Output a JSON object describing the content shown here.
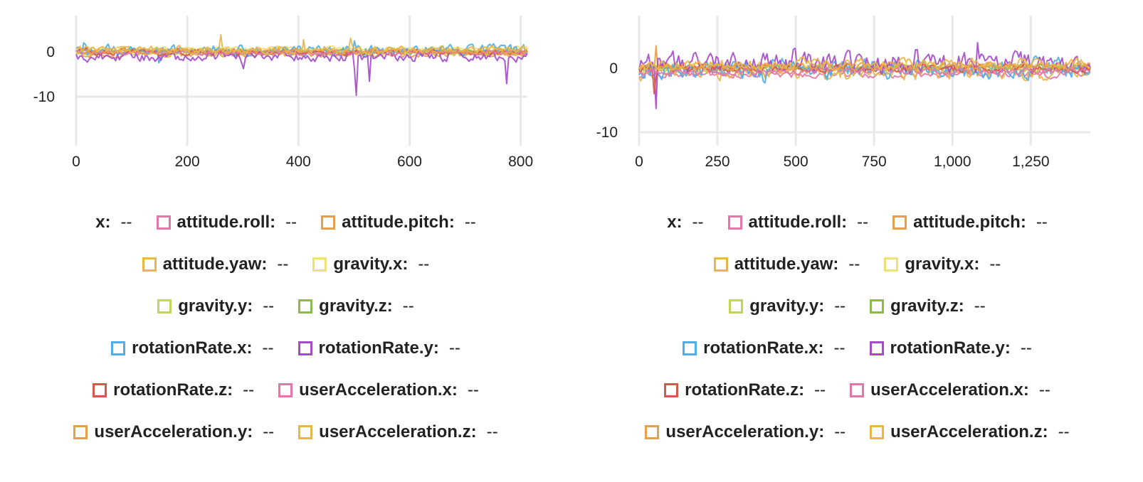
{
  "charts": [
    {
      "chart_data": {
        "type": "line",
        "x_range": [
          0,
          812
        ],
        "ylim": [
          -20,
          5
        ],
        "x_ticks": [
          "0",
          "200",
          "400",
          "600",
          "800"
        ],
        "x_tick_values": [
          0,
          200,
          400,
          600,
          800
        ],
        "y_ticks": [
          "0",
          "-10"
        ],
        "y_tick_values": [
          0,
          -10
        ],
        "grid": true,
        "legend_placement": "bottom",
        "x_legend": {
          "label": "x:",
          "value": "--"
        },
        "series": [
          {
            "name": "attitude.roll",
            "color": "#E377A7",
            "value": "--",
            "amp": 0.8,
            "offset": 0.2,
            "spikes": []
          },
          {
            "name": "attitude.pitch",
            "color": "#E5A04D",
            "value": "--",
            "amp": 1.0,
            "offset": -0.6,
            "spikes": []
          },
          {
            "name": "attitude.yaw",
            "color": "#E8B64A",
            "value": "--",
            "amp": 1.6,
            "offset": 0.0,
            "spikes": [
              [
                260,
                4.5
              ],
              [
                410,
                3.5
              ]
            ]
          },
          {
            "name": "gravity.x",
            "color": "#EFE07A",
            "value": "--",
            "amp": 0.6,
            "offset": 0.8,
            "spikes": []
          },
          {
            "name": "gravity.y",
            "color": "#C3D45C",
            "value": "--",
            "amp": 0.5,
            "offset": -0.3,
            "spikes": []
          },
          {
            "name": "gravity.z",
            "color": "#8DBA4E",
            "value": "--",
            "amp": 0.5,
            "offset": 0.2,
            "spikes": []
          },
          {
            "name": "rotationRate.x",
            "color": "#4FAEE8",
            "value": "--",
            "amp": 2.0,
            "offset": 0.3,
            "spikes": [
              [
                15,
                4
              ],
              [
                150,
                -4
              ],
              [
                500,
                3.5
              ]
            ]
          },
          {
            "name": "rotationRate.y",
            "color": "#A64CCB",
            "value": "--",
            "amp": 1.8,
            "offset": -1.0,
            "spikes": [
              [
                503,
                -15
              ],
              [
                528,
                -7
              ],
              [
                775,
                -7.5
              ],
              [
                300,
                -5
              ]
            ]
          },
          {
            "name": "rotationRate.z",
            "color": "#D9574A",
            "value": "--",
            "amp": 1.0,
            "offset": 0.0,
            "spikes": []
          },
          {
            "name": "userAcceleration.x",
            "color": "#E377A7",
            "value": "--",
            "amp": 0.8,
            "offset": -0.2,
            "spikes": []
          },
          {
            "name": "userAcceleration.y",
            "color": "#E5A04D",
            "value": "--",
            "amp": 1.0,
            "offset": 0.1,
            "spikes": []
          },
          {
            "name": "userAcceleration.z",
            "color": "#E8B64A",
            "value": "--",
            "amp": 1.2,
            "offset": 0.5,
            "spikes": [
              [
                495,
                4.5
              ]
            ]
          }
        ]
      }
    },
    {
      "chart_data": {
        "type": "line",
        "x_range": [
          0,
          1440
        ],
        "ylim": [
          -10,
          6
        ],
        "x_ticks": [
          "0",
          "250",
          "500",
          "750",
          "1,000",
          "1,250"
        ],
        "x_tick_values": [
          0,
          250,
          500,
          750,
          1000,
          1250
        ],
        "y_ticks": [
          "0",
          "-10"
        ],
        "y_tick_values": [
          0,
          -10
        ],
        "grid": true,
        "legend_placement": "bottom",
        "x_legend": {
          "label": "x:",
          "value": "--"
        },
        "series": [
          {
            "name": "attitude.roll",
            "color": "#E377A7",
            "value": "--",
            "amp": 0.8,
            "offset": -1.0,
            "spikes": []
          },
          {
            "name": "attitude.pitch",
            "color": "#E5A04D",
            "value": "--",
            "amp": 1.2,
            "offset": 0.0,
            "spikes": [
              [
                55,
                4.5
              ]
            ]
          },
          {
            "name": "attitude.yaw",
            "color": "#E8B64A",
            "value": "--",
            "amp": 2.0,
            "offset": -0.5,
            "spikes": []
          },
          {
            "name": "gravity.x",
            "color": "#EFE07A",
            "value": "--",
            "amp": 0.6,
            "offset": 0.5,
            "spikes": []
          },
          {
            "name": "gravity.y",
            "color": "#C3D45C",
            "value": "--",
            "amp": 0.5,
            "offset": -0.2,
            "spikes": []
          },
          {
            "name": "gravity.z",
            "color": "#8DBA4E",
            "value": "--",
            "amp": 0.5,
            "offset": 0.2,
            "spikes": []
          },
          {
            "name": "rotationRate.x",
            "color": "#4FAEE8",
            "value": "--",
            "amp": 2.4,
            "offset": 0.0,
            "spikes": [
              [
                400,
                -4
              ]
            ]
          },
          {
            "name": "rotationRate.y",
            "color": "#A64CCB",
            "value": "--",
            "amp": 2.6,
            "offset": 0.8,
            "spikes": [
              [
                55,
                -8
              ],
              [
                495,
                5.5
              ],
              [
                885,
                6
              ],
              [
                1080,
                4
              ]
            ]
          },
          {
            "name": "rotationRate.z",
            "color": "#D9574A",
            "value": "--",
            "amp": 1.0,
            "offset": 0.0,
            "spikes": [
              [
                50,
                -6
              ]
            ]
          },
          {
            "name": "userAcceleration.x",
            "color": "#E377A7",
            "value": "--",
            "amp": 0.8,
            "offset": -0.5,
            "spikes": []
          },
          {
            "name": "userAcceleration.y",
            "color": "#E5A04D",
            "value": "--",
            "amp": 1.0,
            "offset": 0.2,
            "spikes": []
          },
          {
            "name": "userAcceleration.z",
            "color": "#E8B64A",
            "value": "--",
            "amp": 1.4,
            "offset": 0.6,
            "spikes": []
          }
        ]
      }
    }
  ]
}
